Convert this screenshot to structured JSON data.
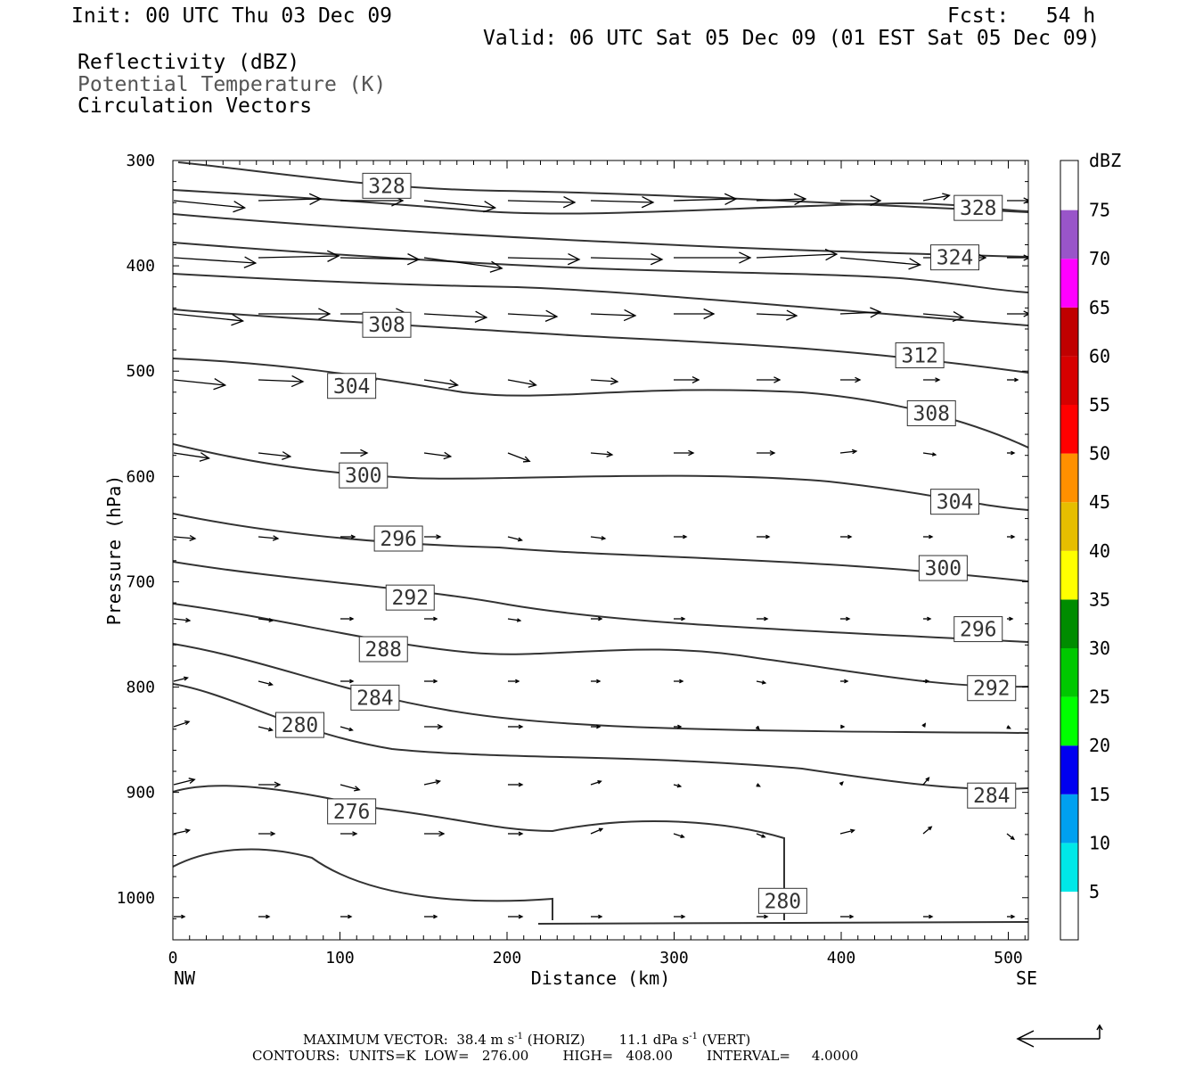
{
  "header": {
    "init": "Init: 00 UTC Thu 03 Dec 09",
    "fcst": "Fcst:   54 h",
    "valid": "Valid: 06 UTC Sat 05 Dec 09 (01 EST Sat 05 Dec 09)",
    "fields": [
      "Reflectivity (dBZ)",
      "Potential Temperature (K)",
      "Circulation Vectors"
    ]
  },
  "chart_data": {
    "type": "line",
    "xlabel": "Distance (km)",
    "ylabel": "Pressure (hPa)",
    "xlim": [
      0,
      512
    ],
    "ylim": [
      1040,
      300
    ],
    "yscale": "linear-pressure (inverted)",
    "xticks": [
      0,
      100,
      200,
      300,
      400,
      500
    ],
    "yticks": [
      300,
      400,
      500,
      600,
      700,
      800,
      900,
      1000
    ],
    "x_endpoint_labels": {
      "left": "NW",
      "right": "SE"
    },
    "contour_units": "K",
    "contour_labels": [
      {
        "value": "328",
        "x": 128,
        "p": 324
      },
      {
        "value": "328",
        "x": 482,
        "p": 345
      },
      {
        "value": "324",
        "x": 468,
        "p": 392
      },
      {
        "value": "308",
        "x": 128,
        "p": 456
      },
      {
        "value": "312",
        "x": 447,
        "p": 485
      },
      {
        "value": "304",
        "x": 107,
        "p": 514
      },
      {
        "value": "308",
        "x": 454,
        "p": 540
      },
      {
        "value": "300",
        "x": 114,
        "p": 599
      },
      {
        "value": "304",
        "x": 468,
        "p": 624
      },
      {
        "value": "296",
        "x": 135,
        "p": 659
      },
      {
        "value": "300",
        "x": 461,
        "p": 687
      },
      {
        "value": "292",
        "x": 142,
        "p": 715
      },
      {
        "value": "296",
        "x": 482,
        "p": 745
      },
      {
        "value": "288",
        "x": 126,
        "p": 764
      },
      {
        "value": "292",
        "x": 490,
        "p": 801
      },
      {
        "value": "284",
        "x": 121,
        "p": 810
      },
      {
        "value": "280",
        "x": 76,
        "p": 836
      },
      {
        "value": "284",
        "x": 490,
        "p": 903
      },
      {
        "value": "276",
        "x": 107,
        "p": 918
      },
      {
        "value": "280",
        "x": 365,
        "p": 1003
      }
    ],
    "colorbar": {
      "title": "dBZ",
      "levels": [
        "5",
        "10",
        "15",
        "20",
        "25",
        "30",
        "35",
        "40",
        "45",
        "50",
        "55",
        "60",
        "65",
        "70",
        "75"
      ],
      "colors": [
        "#00e8e8",
        "#00a0f0",
        "#0000f0",
        "#00ff00",
        "#00c800",
        "#008c00",
        "#ffff00",
        "#e6be00",
        "#ff9000",
        "#ff0000",
        "#d60000",
        "#c00000",
        "#ff00ff",
        "#9955c9",
        "#ffffff"
      ]
    },
    "grid": false,
    "legend": "colorbar right"
  },
  "footer": {
    "vector_prefix": "MAXIMUM VECTOR:  38.4 m s",
    "vector_mid": " (HORIZ)        11.1 dPa s",
    "vector_suffix": " (VERT)",
    "superscript": "-1",
    "contours": "CONTOURS:  UNITS=K  LOW=   276.00        HIGH=   408.00        INTERVAL=     4.0000"
  }
}
